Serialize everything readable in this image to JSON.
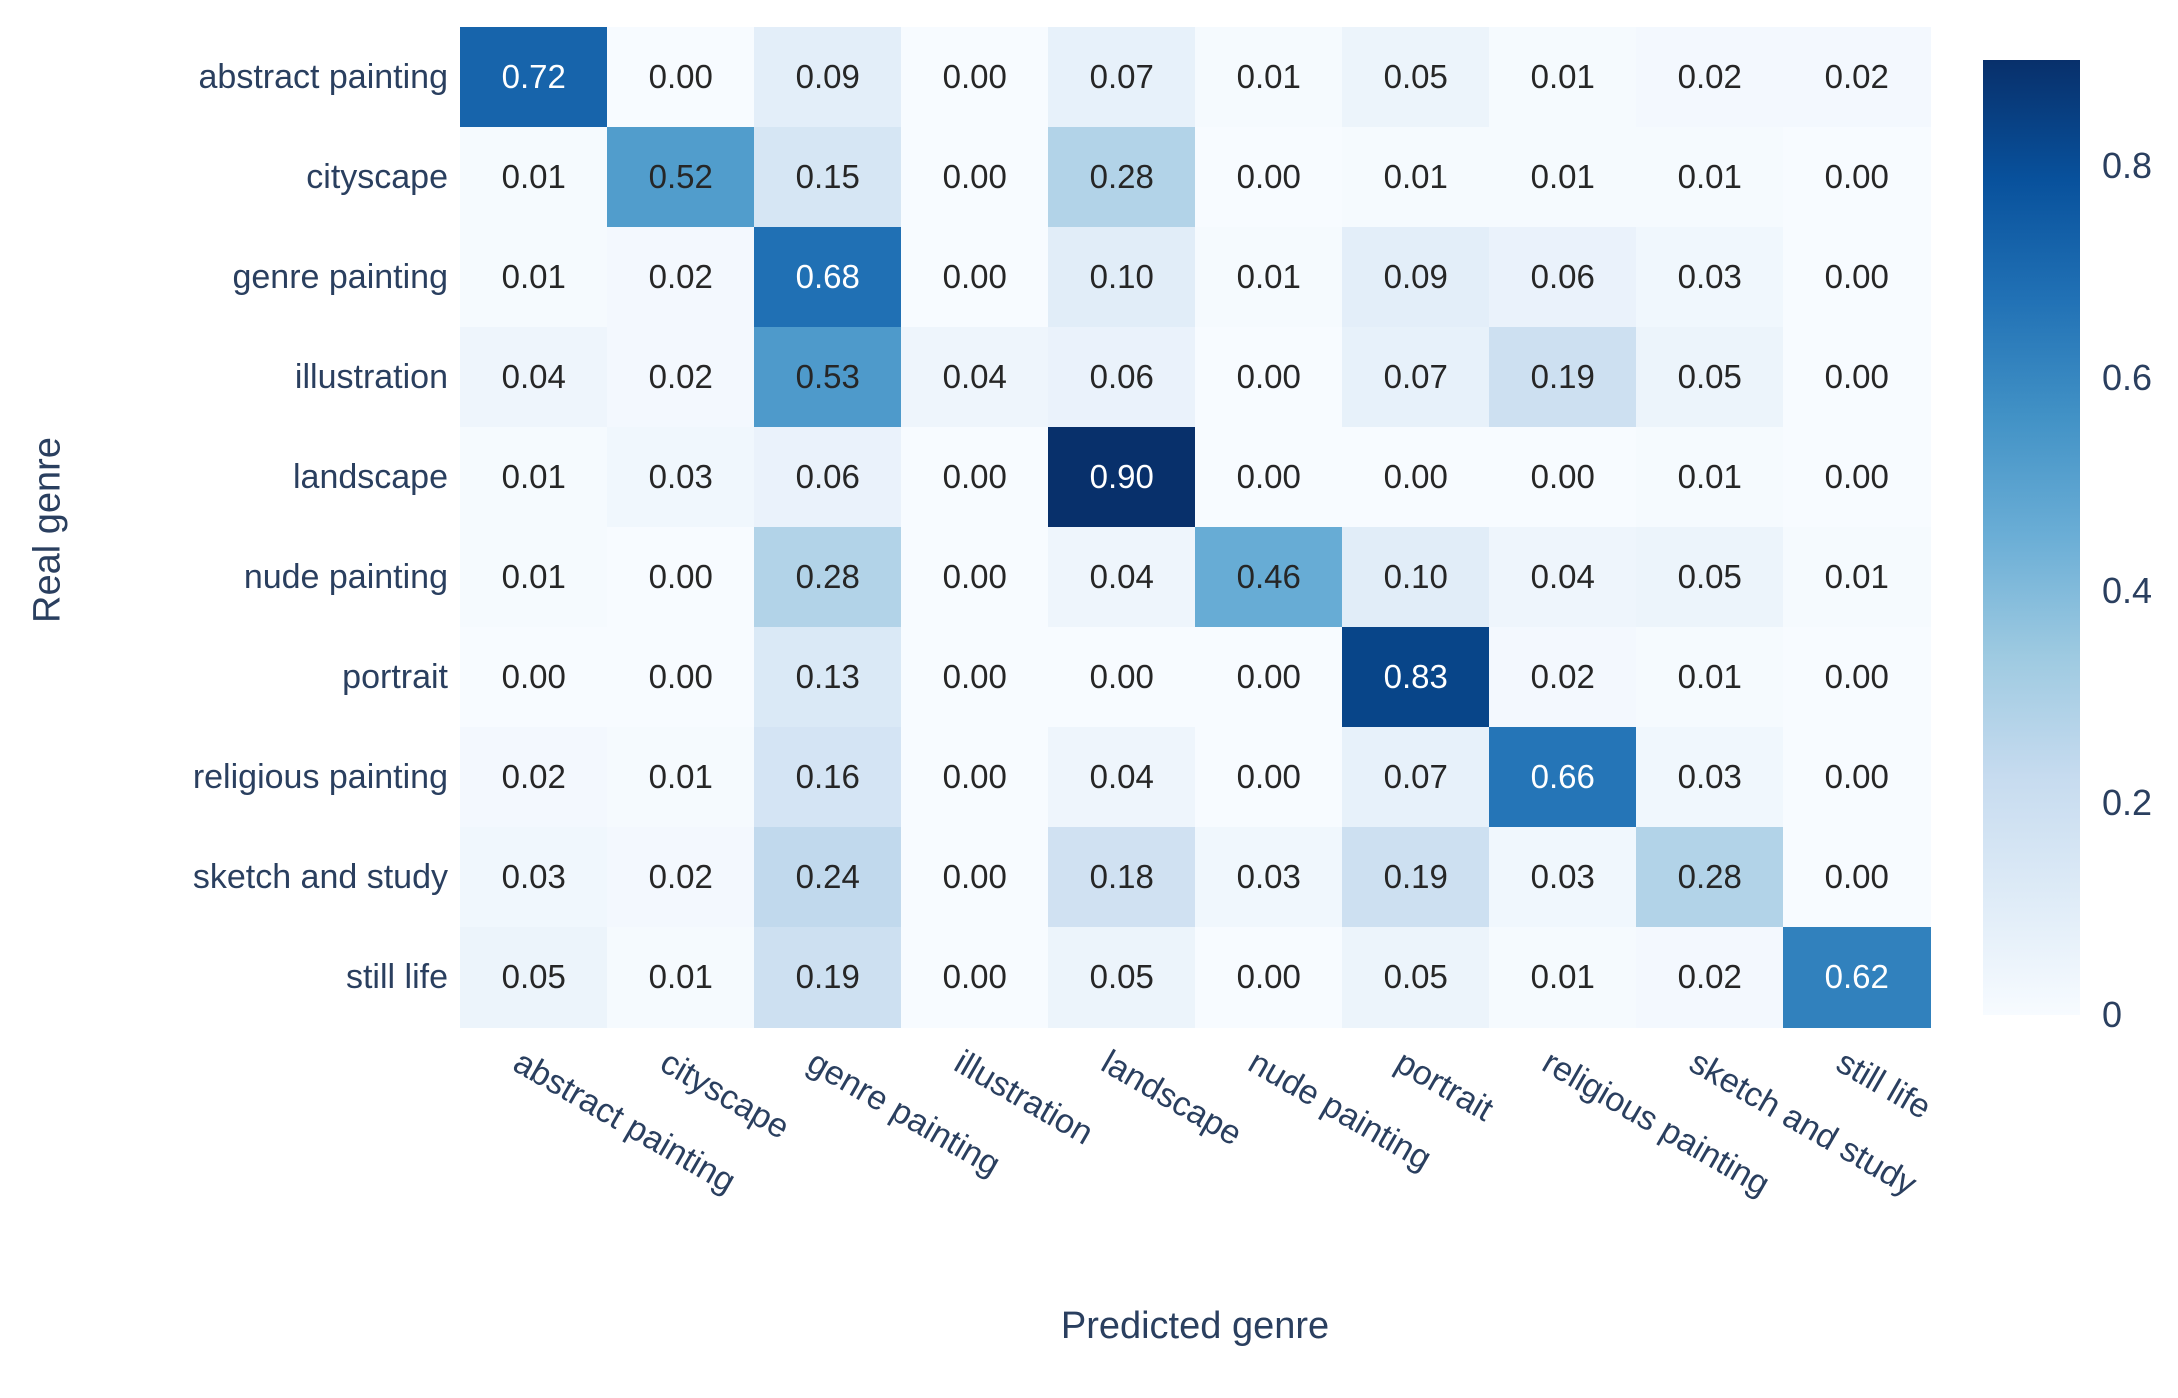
{
  "chart_data": {
    "type": "heatmap",
    "title": "",
    "xlabel": "Predicted genre",
    "ylabel": "Real genre",
    "x_categories": [
      "abstract painting",
      "cityscape",
      "genre painting",
      "illustration",
      "landscape",
      "nude painting",
      "portrait",
      "religious painting",
      "sketch and study",
      "still life"
    ],
    "y_categories": [
      "abstract painting",
      "cityscape",
      "genre painting",
      "illustration",
      "landscape",
      "nude painting",
      "portrait",
      "religious painting",
      "sketch and study",
      "still life"
    ],
    "matrix": [
      [
        0.72,
        0.0,
        0.09,
        0.0,
        0.07,
        0.01,
        0.05,
        0.01,
        0.02,
        0.02
      ],
      [
        0.01,
        0.52,
        0.15,
        0.0,
        0.28,
        0.0,
        0.01,
        0.01,
        0.01,
        0.0
      ],
      [
        0.01,
        0.02,
        0.68,
        0.0,
        0.1,
        0.01,
        0.09,
        0.06,
        0.03,
        0.0
      ],
      [
        0.04,
        0.02,
        0.53,
        0.04,
        0.06,
        0.0,
        0.07,
        0.19,
        0.05,
        0.0
      ],
      [
        0.01,
        0.03,
        0.06,
        0.0,
        0.9,
        0.0,
        0.0,
        0.0,
        0.01,
        0.0
      ],
      [
        0.01,
        0.0,
        0.28,
        0.0,
        0.04,
        0.46,
        0.1,
        0.04,
        0.05,
        0.01
      ],
      [
        0.0,
        0.0,
        0.13,
        0.0,
        0.0,
        0.0,
        0.83,
        0.02,
        0.01,
        0.0
      ],
      [
        0.02,
        0.01,
        0.16,
        0.0,
        0.04,
        0.0,
        0.07,
        0.66,
        0.03,
        0.0
      ],
      [
        0.03,
        0.02,
        0.24,
        0.0,
        0.18,
        0.03,
        0.19,
        0.03,
        0.28,
        0.0
      ],
      [
        0.05,
        0.01,
        0.19,
        0.0,
        0.05,
        0.0,
        0.05,
        0.01,
        0.02,
        0.62
      ]
    ],
    "value_format_decimals": 2,
    "grid": false,
    "legend_position": "right-colorbar",
    "colorbar": {
      "vmin": 0,
      "vmax": 0.9,
      "tick_values": [
        0,
        0.2,
        0.4,
        0.6,
        0.8
      ],
      "tick_labels": [
        "0",
        "0.2",
        "0.4",
        "0.6",
        "0.8"
      ]
    },
    "colorscale": {
      "name": "Blues",
      "anchors": [
        {
          "t": 0.0,
          "hex": "#f7fbff"
        },
        {
          "t": 0.125,
          "hex": "#deebf7"
        },
        {
          "t": 0.25,
          "hex": "#c6dbef"
        },
        {
          "t": 0.375,
          "hex": "#9ecae1"
        },
        {
          "t": 0.5,
          "hex": "#6baed6"
        },
        {
          "t": 0.625,
          "hex": "#4292c6"
        },
        {
          "t": 0.75,
          "hex": "#2171b5"
        },
        {
          "t": 0.875,
          "hex": "#08519c"
        },
        {
          "t": 1.0,
          "hex": "#08306b"
        }
      ],
      "dark_text_color": "#262626",
      "light_text_color": "#ffffff",
      "axis_text_color": "#2a3f5f",
      "white_text_threshold": 0.55
    }
  }
}
